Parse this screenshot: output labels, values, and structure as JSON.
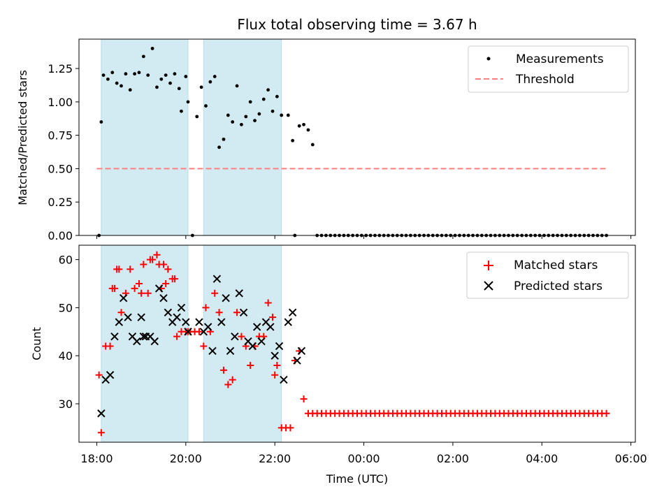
{
  "chart_data": [
    {
      "type": "scatter",
      "title": "Flux total observing time = 3.67 h",
      "xlabel": "",
      "ylabel": "Matched/Predicted stars",
      "xlim": [
        17.6,
        30.1
      ],
      "ylim": [
        0,
        1.47
      ],
      "yticks": [
        0.0,
        0.25,
        0.5,
        0.75,
        1.0,
        1.25
      ],
      "ytick_labels": [
        "0.00",
        "0.25",
        "0.50",
        "0.75",
        "1.00",
        "1.25"
      ],
      "legend": [
        "Measurements",
        "Threshold"
      ],
      "legend_position": "top-right",
      "threshold": 0.5,
      "threshold_x": [
        18.0,
        29.45
      ],
      "shaded_intervals": [
        [
          18.1,
          20.05
        ],
        [
          20.4,
          22.15
        ]
      ],
      "series": [
        {
          "name": "Measurements",
          "x": [
            18.05,
            18.1,
            18.15,
            18.25,
            18.35,
            18.45,
            18.55,
            18.65,
            18.75,
            18.85,
            18.95,
            19.05,
            19.15,
            19.25,
            19.35,
            19.45,
            19.55,
            19.65,
            19.75,
            19.85,
            19.9,
            20.0,
            20.05,
            20.15,
            20.25,
            20.35,
            20.45,
            20.55,
            20.65,
            20.75,
            20.85,
            20.95,
            21.05,
            21.15,
            21.25,
            21.35,
            21.45,
            21.55,
            21.65,
            21.75,
            21.85,
            21.95,
            22.05,
            22.15,
            22.3,
            22.4,
            22.45,
            22.55,
            22.65
          ],
          "y": [
            0.0,
            0.85,
            1.2,
            1.17,
            1.22,
            1.14,
            1.12,
            1.21,
            1.09,
            1.21,
            1.22,
            1.34,
            1.2,
            1.4,
            1.11,
            1.17,
            1.2,
            1.14,
            1.21,
            1.1,
            0.93,
            1.19,
            1.0,
            0.0,
            0.89,
            1.11,
            0.97,
            1.15,
            1.19,
            0.66,
            0.72,
            0.9,
            0.85,
            1.12,
            0.83,
            0.89,
            1.0,
            0.86,
            0.91,
            1.02,
            1.09,
            0.93,
            1.04,
            0.9,
            0.9,
            0.71,
            0.0,
            0.82,
            0.83
          ],
          "extra_x": [
            22.75,
            22.85
          ],
          "extra_y": [
            0.79,
            0.68
          ],
          "zero_points_from": 22.95,
          "zero_points_to": 29.45,
          "zero_points_step": 0.1
        },
        {
          "name": "Threshold",
          "y": [
            0.5,
            0.5
          ]
        }
      ]
    },
    {
      "type": "scatter",
      "title": "",
      "xlabel": "Time (UTC)",
      "ylabel": "Count",
      "xlim": [
        17.6,
        30.1
      ],
      "ylim": [
        22,
        63
      ],
      "yticks": [
        30,
        40,
        50,
        60
      ],
      "ytick_labels": [
        "30",
        "40",
        "50",
        "60"
      ],
      "xticks": [
        18,
        20,
        22,
        24,
        26,
        28,
        30
      ],
      "xtick_labels": [
        "18:00",
        "20:00",
        "22:00",
        "00:00",
        "02:00",
        "04:00",
        "06:00"
      ],
      "legend": [
        "Matched stars",
        "Predicted stars"
      ],
      "legend_position": "top-right",
      "shaded_intervals": [
        [
          18.1,
          20.05
        ],
        [
          20.4,
          22.15
        ]
      ],
      "series": [
        {
          "name": "Matched stars",
          "x": [
            18.05,
            18.1,
            18.2,
            18.3,
            18.35,
            18.4,
            18.45,
            18.5,
            18.55,
            18.65,
            18.75,
            18.85,
            18.95,
            19.0,
            19.05,
            19.15,
            19.2,
            19.25,
            19.35,
            19.4,
            19.45,
            19.5,
            19.55,
            19.6,
            19.7,
            19.75,
            19.8,
            19.9,
            20.0,
            20.05,
            20.1,
            20.2,
            20.3,
            20.4,
            20.45,
            20.55,
            20.65,
            20.75,
            20.85,
            20.95,
            21.05,
            21.15,
            21.25,
            21.35,
            21.45,
            21.55,
            21.65,
            21.75,
            21.85,
            21.95,
            22.0,
            22.05,
            22.15,
            22.25,
            22.35,
            22.45,
            22.55,
            22.65
          ],
          "y": [
            36,
            24,
            42,
            42,
            54,
            54,
            58,
            58,
            49,
            53,
            58,
            54,
            55,
            53,
            59,
            53,
            60,
            60,
            61,
            59,
            54,
            59,
            55,
            58,
            56,
            56,
            44,
            45,
            45,
            45,
            45,
            45,
            45,
            42,
            50,
            45,
            53,
            49,
            37,
            34,
            35,
            49,
            44,
            42,
            38,
            42,
            44,
            44,
            51,
            48,
            36,
            38,
            25,
            25,
            25,
            39,
            41,
            31
          ],
          "tail_from": 22.75,
          "tail_to": 29.45,
          "tail_step": 0.1,
          "tail_value": 28
        },
        {
          "name": "Predicted stars",
          "x": [
            18.1,
            18.2,
            18.3,
            18.4,
            18.5,
            18.6,
            18.7,
            18.8,
            18.9,
            19.0,
            19.05,
            19.1,
            19.2,
            19.3,
            19.4,
            19.5,
            19.6,
            19.7,
            19.8,
            19.9,
            20.0,
            20.05,
            20.3,
            20.4,
            20.5,
            20.6,
            20.7,
            20.8,
            20.9,
            21.0,
            21.1,
            21.2,
            21.3,
            21.4,
            21.5,
            21.6,
            21.7,
            21.8,
            21.9,
            22.0,
            22.1,
            22.2,
            22.3,
            22.4,
            22.5,
            22.6
          ],
          "y": [
            28,
            35,
            36,
            44,
            47,
            52,
            48,
            44,
            43,
            48,
            44,
            44,
            44,
            43,
            54,
            52,
            49,
            47,
            48,
            50,
            47,
            45,
            47,
            45,
            46,
            41,
            56,
            47,
            52,
            41,
            44,
            53,
            49,
            43,
            42,
            46,
            43,
            47,
            46,
            40,
            42,
            35,
            47,
            49,
            39,
            41
          ]
        }
      ]
    }
  ]
}
